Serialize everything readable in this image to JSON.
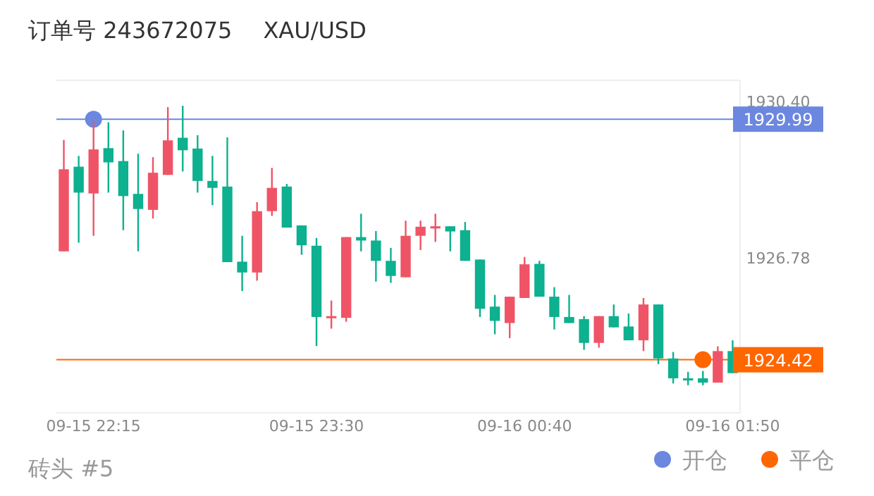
{
  "chart_data": {
    "type": "candlestick",
    "title": "订单号 243672075",
    "subtitle": "XAU/USD",
    "categories": [
      null,
      null,
      "09-15 22:15",
      null,
      null,
      null,
      null,
      null,
      null,
      null,
      null,
      null,
      null,
      null,
      null,
      null,
      null,
      "09-15 23:30",
      null,
      null,
      null,
      null,
      null,
      null,
      null,
      null,
      null,
      null,
      null,
      null,
      null,
      "09-16 00:40",
      null,
      null,
      null,
      null,
      null,
      null,
      null,
      null,
      null,
      null,
      null,
      null,
      null,
      "09-16 01:50"
    ],
    "ohlc": [
      [
        1926.93,
        1929.51,
        1926.93,
        1928.83
      ],
      [
        1928.89,
        1929.14,
        1927.13,
        1928.29
      ],
      [
        1928.27,
        1929.95,
        1927.29,
        1929.29
      ],
      [
        1929.32,
        1929.92,
        1928.29,
        1928.99
      ],
      [
        1929.02,
        1929.73,
        1927.42,
        1928.21
      ],
      [
        1928.26,
        1929.19,
        1926.93,
        1927.91
      ],
      [
        1927.89,
        1929.11,
        1927.69,
        1928.75
      ],
      [
        1928.7,
        1930.27,
        1928.7,
        1929.5
      ],
      [
        1929.56,
        1930.3,
        1928.78,
        1929.27
      ],
      [
        1929.31,
        1929.62,
        1928.29,
        1928.56
      ],
      [
        1928.56,
        1929.14,
        1928.0,
        1928.4
      ],
      [
        1928.43,
        1929.57,
        1926.68,
        1926.68
      ],
      [
        1926.69,
        1927.29,
        1926.01,
        1926.44
      ],
      [
        1926.44,
        1928.07,
        1926.25,
        1927.86
      ],
      [
        1927.86,
        1928.86,
        1927.75,
        1928.4
      ],
      [
        1928.43,
        1928.49,
        1927.48,
        1927.48
      ],
      [
        1927.53,
        1927.53,
        1926.85,
        1927.07
      ],
      [
        1927.06,
        1927.24,
        1924.74,
        1925.41
      ],
      [
        1925.41,
        1925.79,
        1925.14,
        1925.43
      ],
      [
        1925.39,
        1927.26,
        1925.3,
        1927.26
      ],
      [
        1927.26,
        1927.8,
        1926.93,
        1927.18
      ],
      [
        1927.18,
        1927.4,
        1926.23,
        1926.71
      ],
      [
        1926.71,
        1927.01,
        1926.2,
        1926.36
      ],
      [
        1926.33,
        1927.64,
        1926.33,
        1927.29
      ],
      [
        1927.29,
        1927.64,
        1926.96,
        1927.5
      ],
      [
        1927.46,
        1927.8,
        1927.15,
        1927.51
      ],
      [
        1927.51,
        1927.51,
        1926.93,
        1927.39
      ],
      [
        1927.42,
        1927.61,
        1926.71,
        1926.71
      ],
      [
        1926.74,
        1926.74,
        1925.41,
        1925.6
      ],
      [
        1925.65,
        1925.92,
        1925.01,
        1925.32
      ],
      [
        1925.27,
        1925.88,
        1924.92,
        1925.88
      ],
      [
        1925.85,
        1926.8,
        1925.85,
        1926.63
      ],
      [
        1926.64,
        1926.71,
        1925.88,
        1925.88
      ],
      [
        1925.88,
        1926.1,
        1925.12,
        1925.41
      ],
      [
        1925.41,
        1925.92,
        1925.27,
        1925.27
      ],
      [
        1925.36,
        1925.43,
        1924.65,
        1924.81
      ],
      [
        1924.81,
        1925.43,
        1924.7,
        1925.43
      ],
      [
        1925.43,
        1925.7,
        1925.17,
        1925.17
      ],
      [
        1925.19,
        1925.49,
        1924.87,
        1924.87
      ],
      [
        1924.87,
        1925.85,
        1924.62,
        1925.7
      ],
      [
        1925.7,
        1925.7,
        1924.32,
        1924.45
      ],
      [
        1924.45,
        1924.6,
        1923.87,
        1923.99
      ],
      [
        1923.99,
        1924.14,
        1923.83,
        1923.96
      ],
      [
        1923.99,
        1924.16,
        1923.83,
        1923.89
      ],
      [
        1923.89,
        1924.73,
        1923.89,
        1924.62
      ],
      [
        1924.62,
        1924.87,
        1924.11,
        1924.11
      ]
    ],
    "colors": [
      "#ef5466",
      "#0db08f",
      "#ef5466",
      "#0db08f",
      "#0db08f",
      "#0db08f",
      "#ef5466",
      "#ef5466",
      "#0db08f",
      "#0db08f",
      "#0db08f",
      "#0db08f",
      "#0db08f",
      "#ef5466",
      "#ef5466",
      "#0db08f",
      "#0db08f",
      "#0db08f",
      "#ef5466",
      "#ef5466",
      "#0db08f",
      "#0db08f",
      "#0db08f",
      "#ef5466",
      "#ef5466",
      "#ef5466",
      "#0db08f",
      "#0db08f",
      "#0db08f",
      "#0db08f",
      "#ef5466",
      "#ef5466",
      "#0db08f",
      "#0db08f",
      "#0db08f",
      "#0db08f",
      "#ef5466",
      "#0db08f",
      "#0db08f",
      "#ef5466",
      "#0db08f",
      "#0db08f",
      "#0db08f",
      "#0db08f",
      "#ef5466",
      "#0db08f"
    ],
    "series": [
      {
        "name": "开仓",
        "type": "scatter",
        "color": "#6b87e0",
        "values": [
          null,
          null,
          1929.99,
          null,
          null,
          null,
          null,
          null,
          null,
          null,
          null,
          null,
          null,
          null,
          null,
          null,
          null,
          null,
          null,
          null,
          null,
          null,
          null,
          null,
          null,
          null,
          null,
          null,
          null,
          null,
          null,
          null,
          null,
          null,
          null,
          null,
          null,
          null,
          null,
          null,
          null,
          null,
          null,
          null,
          null,
          null
        ]
      },
      {
        "name": "平仓",
        "type": "scatter",
        "color": "#ff6600",
        "values": [
          null,
          null,
          null,
          null,
          null,
          null,
          null,
          null,
          null,
          null,
          null,
          null,
          null,
          null,
          null,
          null,
          null,
          null,
          null,
          null,
          null,
          null,
          null,
          null,
          null,
          null,
          null,
          null,
          null,
          null,
          null,
          null,
          null,
          null,
          null,
          null,
          null,
          null,
          null,
          null,
          null,
          null,
          null,
          1924.42,
          null,
          null
        ]
      }
    ],
    "marker": "circle",
    "ylim": [
      1923.19,
      1930.89
    ],
    "yticks": [
      {
        "value": 1930.4,
        "label": "1930.40"
      },
      {
        "value": 1926.78,
        "label": "1926.78"
      }
    ],
    "ref_lines": [
      {
        "axis": "y",
        "value": 1929.99,
        "label": "1929.99",
        "color": "#6b87e0"
      },
      {
        "axis": "y",
        "value": 1924.42,
        "label": "1924.42",
        "color": "#ff6600"
      }
    ],
    "legend": "bottom right",
    "annotations": [
      "砖头 #5"
    ]
  }
}
